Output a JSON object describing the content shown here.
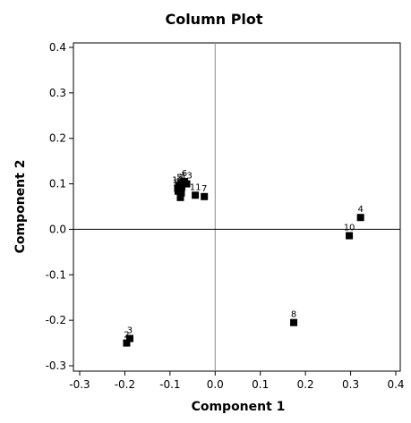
{
  "chart_data": {
    "type": "scatter",
    "title": "Column Plot",
    "xlabel": "Component 1",
    "ylabel": "Component 2",
    "xlim": [
      -0.3,
      0.4
    ],
    "ylim": [
      -0.3,
      0.4
    ],
    "xticks": [
      "-0.3",
      "-0.2",
      "-0.1",
      "0.0",
      "0.1",
      "0.2",
      "0.3",
      "0.4"
    ],
    "yticks": [
      "-0.3",
      "-0.2",
      "-0.1",
      "0.0",
      "0.1",
      "0.2",
      "0.3",
      "0.4"
    ],
    "reference_lines": {
      "x": 0,
      "y": 0
    },
    "marker": "square",
    "marker_color": "#000000",
    "points": [
      {
        "label": "1",
        "x": -0.074,
        "y": 0.095
      },
      {
        "label": "2",
        "x": -0.196,
        "y": -0.25
      },
      {
        "label": "3",
        "x": -0.189,
        "y": -0.24
      },
      {
        "label": "4",
        "x": 0.322,
        "y": 0.026
      },
      {
        "label": "5",
        "x": -0.079,
        "y": 0.096
      },
      {
        "label": "6",
        "x": -0.068,
        "y": 0.105
      },
      {
        "label": "7",
        "x": -0.024,
        "y": 0.072
      },
      {
        "label": "8",
        "x": 0.174,
        "y": -0.205
      },
      {
        "label": "9",
        "x": -0.08,
        "y": 0.088
      },
      {
        "label": "10",
        "x": 0.297,
        "y": -0.014
      },
      {
        "label": "11",
        "x": -0.044,
        "y": 0.075
      },
      {
        "label": "12",
        "x": -0.075,
        "y": 0.08
      },
      {
        "label": "13",
        "x": -0.063,
        "y": 0.1
      },
      {
        "label": "14",
        "x": -0.077,
        "y": 0.07
      },
      {
        "label": "15",
        "x": -0.082,
        "y": 0.084
      },
      {
        "label": "16",
        "x": -0.083,
        "y": 0.09
      }
    ]
  }
}
